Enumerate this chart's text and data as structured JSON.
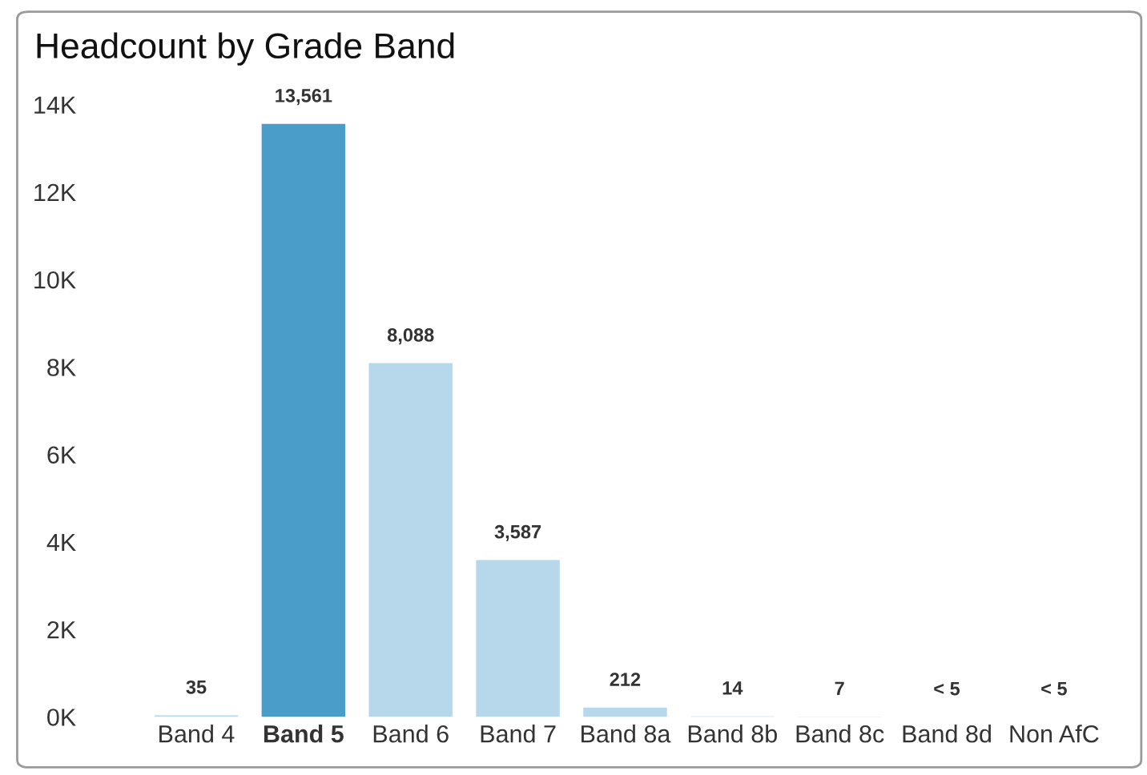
{
  "chart_data": {
    "type": "bar",
    "title": "Headcount by Grade Band",
    "categories": [
      "Band 4",
      "Band 5",
      "Band 6",
      "Band 7",
      "Band 8a",
      "Band 8b",
      "Band 8c",
      "Band 8d",
      "Non AfC"
    ],
    "values": [
      35,
      13561,
      8088,
      3587,
      212,
      14,
      7,
      null,
      null
    ],
    "colors": [
      "#b7d7ea",
      "#4a9cc9",
      "#b7d7ea",
      "#b7d7ea",
      "#b7d7ea",
      "#b7d7ea",
      "#b7d7ea",
      "#b7d7ea",
      "#b7d7ea"
    ],
    "value_labels": [
      "35",
      "13,561",
      "8,088",
      "3,587",
      "212",
      "14",
      "7",
      "< 5",
      "< 5"
    ],
    "ylim": [
      0,
      14000
    ],
    "yticks": [
      {
        "value": 0,
        "label": "0K"
      },
      {
        "value": 2000,
        "label": "2K"
      },
      {
        "value": 4000,
        "label": "4K"
      },
      {
        "value": 6000,
        "label": "6K"
      },
      {
        "value": 8000,
        "label": "8K"
      },
      {
        "value": 10000,
        "label": "10K"
      },
      {
        "value": 12000,
        "label": "12K"
      },
      {
        "value": 14000,
        "label": "14K"
      }
    ],
    "grid": false,
    "legend": false
  }
}
